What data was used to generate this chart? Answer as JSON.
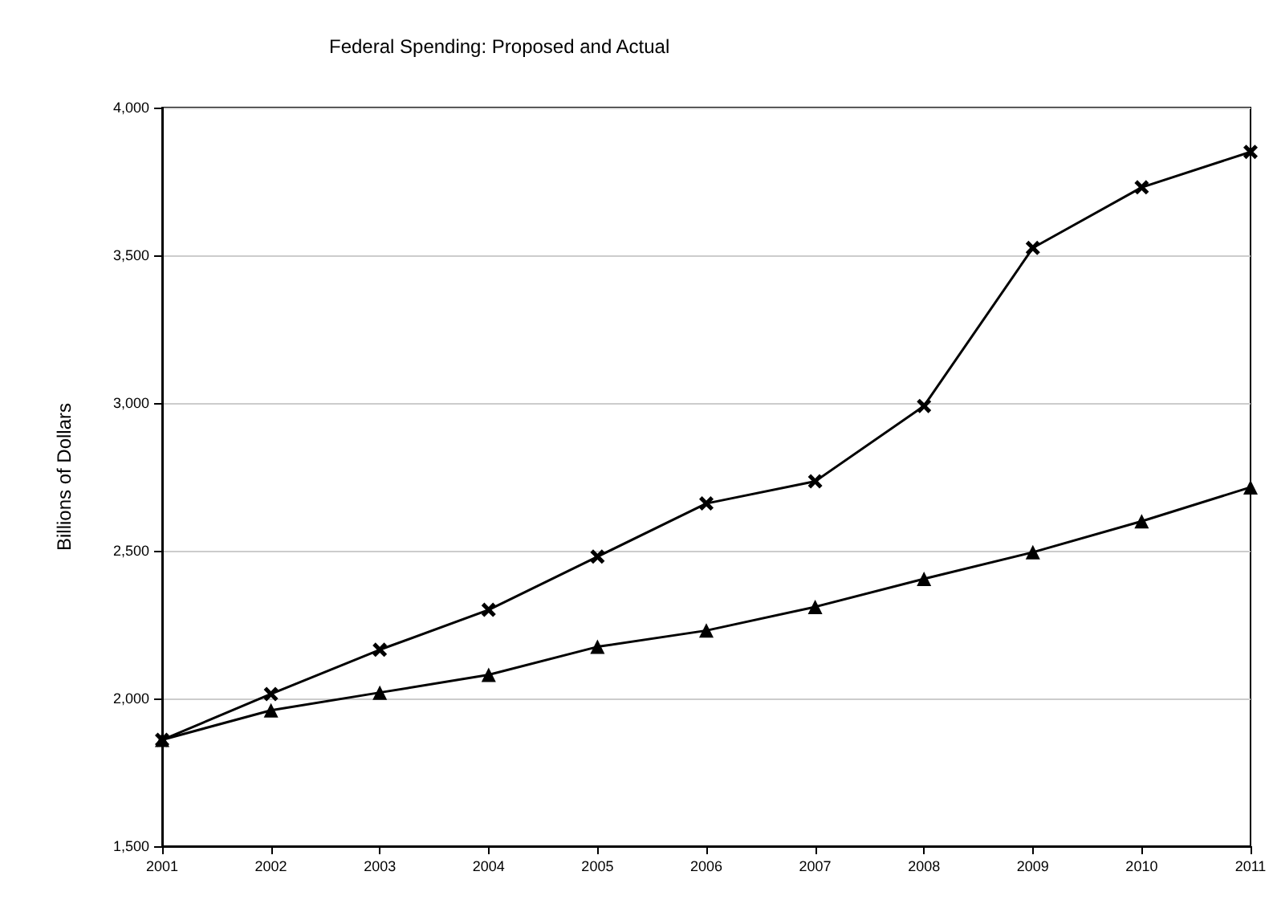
{
  "chart_data": {
    "type": "line",
    "title": "Federal Spending: Proposed and Actual",
    "ylabel": "Billions of Dollars",
    "categories": [
      "2001",
      "2002",
      "2003",
      "2004",
      "2005",
      "2006",
      "2007",
      "2008",
      "2009",
      "2010",
      "2011"
    ],
    "series": [
      {
        "color": "#000000",
        "marker": "cross",
        "values": [
          1860,
          2015,
          2165,
          2300,
          2480,
          2660,
          2735,
          2990,
          3525,
          3730,
          3850
        ]
      },
      {
        "color": "#000000",
        "marker": "triangle",
        "values": [
          1860,
          1960,
          2020,
          2080,
          2175,
          2230,
          2310,
          2405,
          2495,
          2600,
          2715
        ]
      }
    ],
    "ylim": [
      1500,
      4000
    ],
    "yticks": [
      {
        "value": 1500,
        "label": "1,500"
      },
      {
        "value": 2000,
        "label": "2,000"
      },
      {
        "value": 2500,
        "label": "2,500"
      },
      {
        "value": 3000,
        "label": "3,000"
      },
      {
        "value": 3500,
        "label": "3,500"
      },
      {
        "value": 4000,
        "label": "4,000"
      }
    ],
    "grid": "y",
    "line_style": "solid"
  }
}
